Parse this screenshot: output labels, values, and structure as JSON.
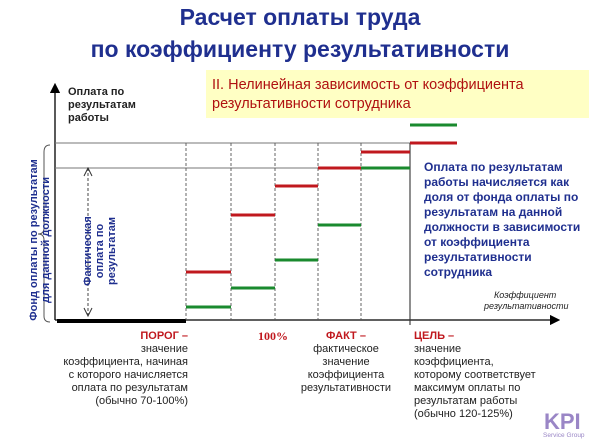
{
  "title_line1": "Расчет оплаты труда",
  "title_line2": "по коэффициенту результативности",
  "box_line1": "II. Нелинейная зависимость от коэффициента",
  "box_line2": "результативности сотрудника",
  "y_axis_title": [
    "Оплата по",
    "результатам",
    "работы"
  ],
  "y_side_label": [
    "Фонд оплаты по результатам",
    "для данной должности"
  ],
  "inner_label": [
    "Фактическая",
    "оплата по",
    "результатам"
  ],
  "x_axis_title": [
    "Коэффициент",
    "результативности"
  ],
  "right_note": [
    "Оплата по результатам",
    "работы начисляется как",
    "доля от фонда оплаты по",
    "результатам на данной",
    "должности в зависимости",
    "от коэффициента",
    "результативности",
    "сотрудника"
  ],
  "porog": {
    "head": "ПОРОГ –",
    "body": [
      "значение",
      "коэффициента, начиная",
      "с которого начисляется",
      "оплата по результатам",
      "(обычно 70-100%)"
    ]
  },
  "hundred": "100%",
  "fakt": {
    "head": "ФАКТ –",
    "body": [
      "фактическое",
      "значение",
      "коэффициента",
      "результативности"
    ]
  },
  "cel": {
    "head": "ЦЕЛЬ –",
    "body": [
      "значение",
      "коэффициента,",
      "которому соответствует",
      "максимум оплаты по",
      "результатам работы",
      "(обычно 120-125%)"
    ]
  },
  "logo_text": "KPI",
  "logo_sub": "Service Group",
  "colors": {
    "title": "#1f2f8f",
    "red_step": "#c0181e",
    "green_step": "#1a8a2e",
    "box_bg": "#ffffc4",
    "box_text": "#b01010",
    "logo": "#9a86c6"
  }
}
